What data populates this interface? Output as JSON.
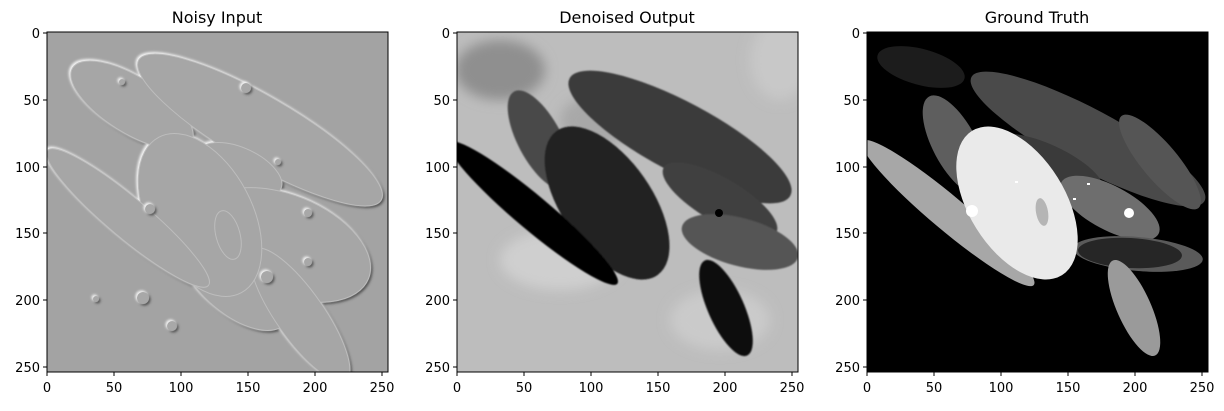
{
  "panels": [
    {
      "title": "Noisy Input",
      "x_ticks": [
        "0",
        "50",
        "100",
        "150",
        "200",
        "250"
      ],
      "y_ticks": [
        "0",
        "50",
        "100",
        "150",
        "200",
        "250"
      ]
    },
    {
      "title": "Denoised Output",
      "x_ticks": [
        "0",
        "50",
        "100",
        "150",
        "200",
        "250"
      ],
      "y_ticks": [
        "0",
        "50",
        "100",
        "150",
        "200",
        "250"
      ]
    },
    {
      "title": "Ground Truth",
      "x_ticks": [
        "0",
        "50",
        "100",
        "150",
        "200",
        "250"
      ],
      "y_ticks": [
        "0",
        "50",
        "100",
        "150",
        "200",
        "250"
      ]
    }
  ],
  "image_extent": [
    0,
    255
  ],
  "tick_values": [
    0,
    50,
    100,
    150,
    200,
    250
  ]
}
